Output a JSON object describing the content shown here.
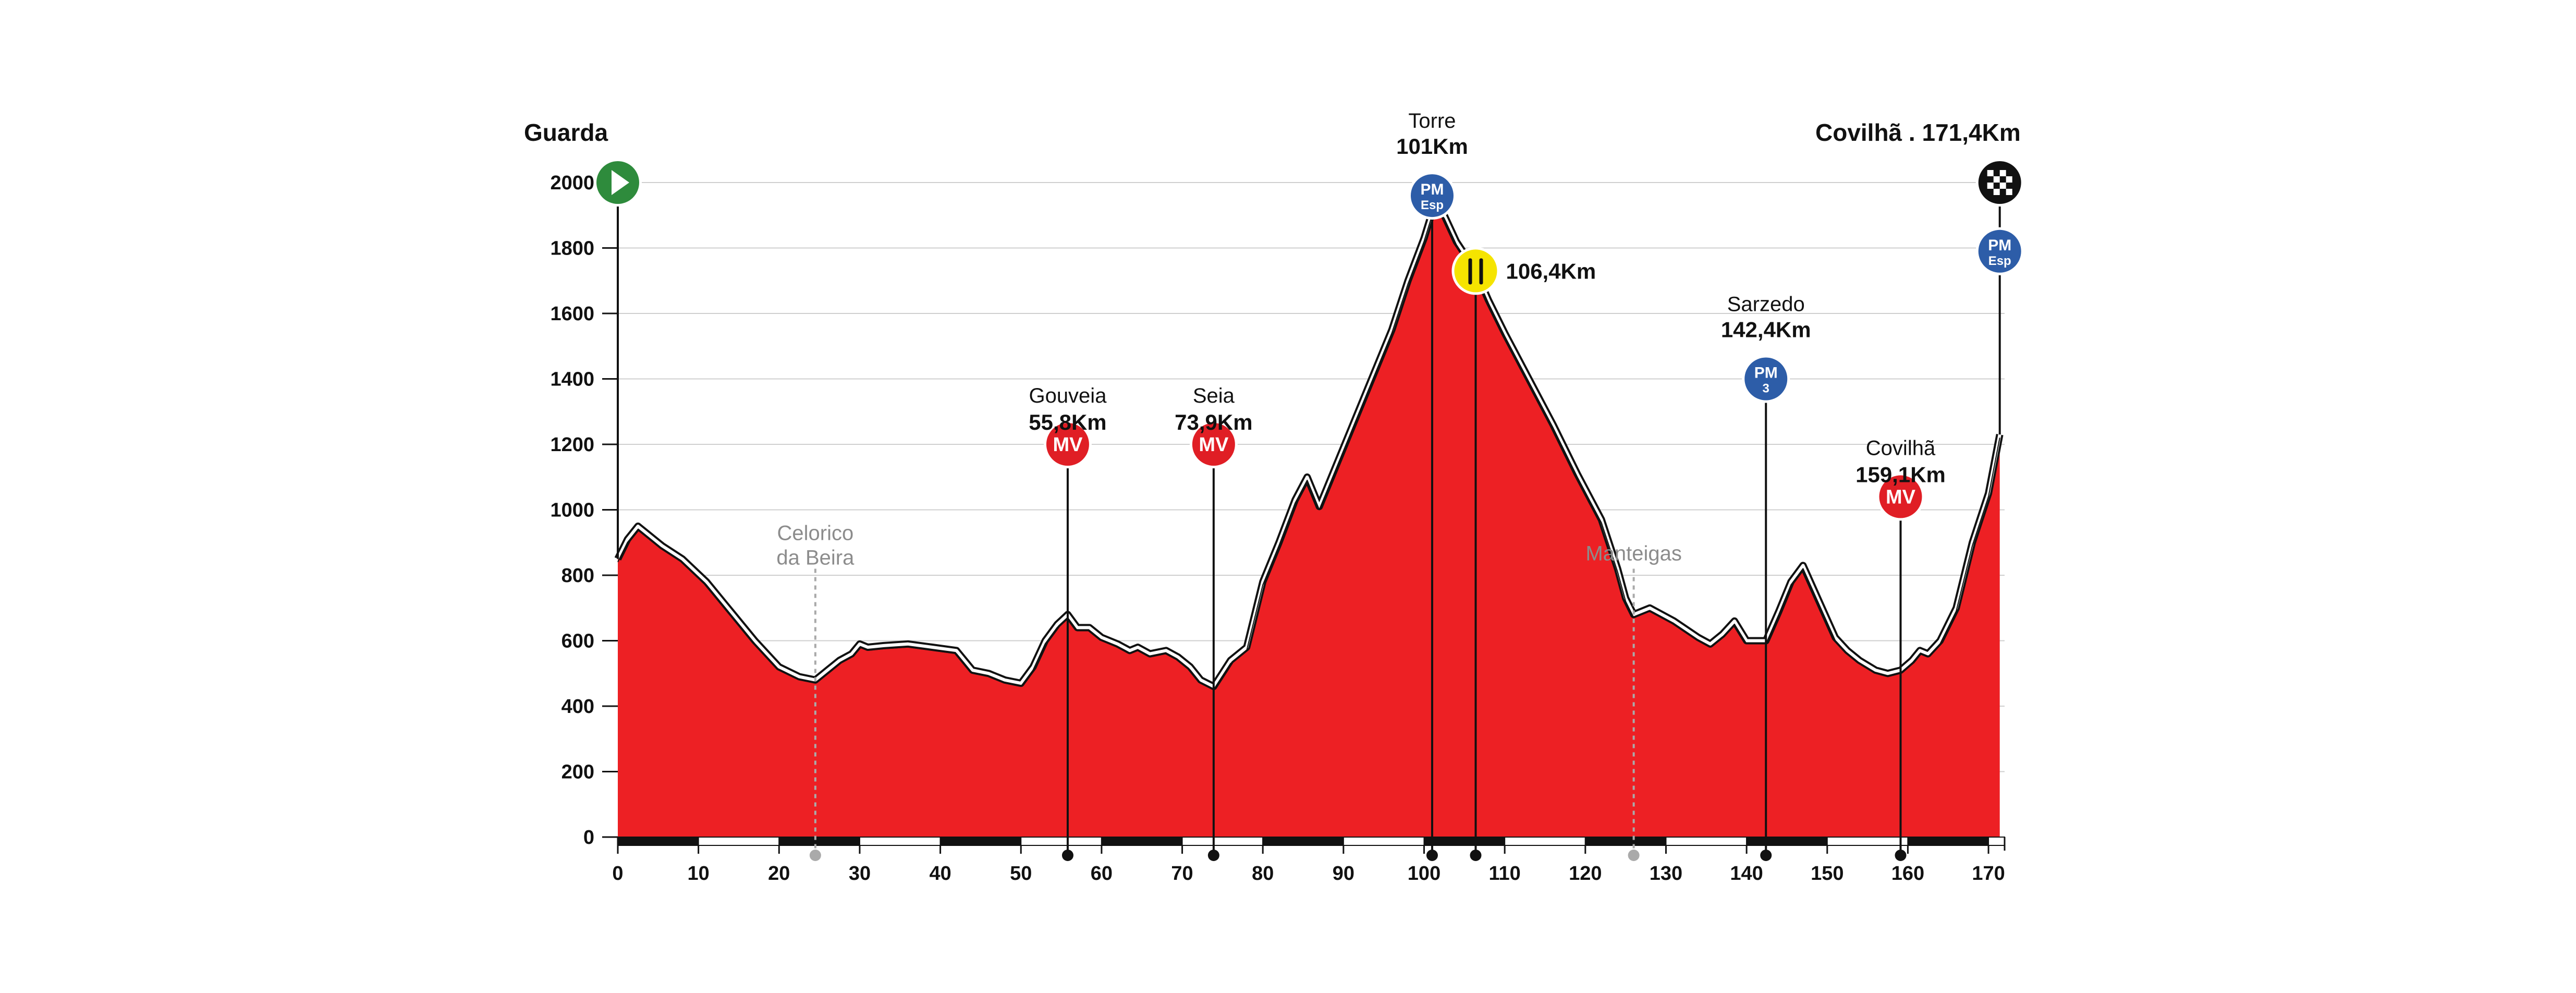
{
  "chart_data": {
    "type": "area",
    "title": "",
    "xlabel": "",
    "ylabel": "",
    "xlim": [
      0,
      172
    ],
    "ylim": [
      0,
      2000
    ],
    "x_ticks": [
      0,
      10,
      20,
      30,
      40,
      50,
      60,
      70,
      80,
      90,
      100,
      110,
      120,
      130,
      140,
      150,
      160,
      170
    ],
    "y_ticks": [
      0,
      200,
      400,
      600,
      800,
      1000,
      1200,
      1400,
      1600,
      1800,
      2000
    ],
    "grid": true,
    "colors": {
      "fill": "#ed2024",
      "outline": "#111111",
      "grid": "#cfcfcf",
      "mv": "#e01e25",
      "pm": "#2d5da8",
      "start": "#2e8b3c",
      "feed": "#f5e400"
    },
    "series": [
      {
        "x": [
          0,
          1.2,
          2.5,
          4,
          5.5,
          8,
          11,
          14,
          17,
          20,
          22.5,
          24.5,
          26,
          27.5,
          29,
          30,
          31,
          33,
          36,
          39,
          42,
          44,
          46,
          48,
          50,
          51.5,
          53,
          54.5,
          55.8,
          57,
          58.5,
          60,
          62,
          63.5,
          64.5,
          66,
          68,
          69.5,
          71,
          72.3,
          73.9,
          76,
          78,
          80,
          82,
          84,
          85.5,
          87,
          90,
          93,
          96,
          98,
          100,
          101,
          101.5,
          102.5,
          104,
          106.4,
          108,
          110,
          113,
          116,
          119,
          122,
          124,
          125,
          126,
          128,
          131,
          134,
          135.5,
          137,
          138.5,
          140,
          142.4,
          144,
          145.5,
          147,
          149,
          151,
          152.5,
          154,
          156,
          157.5,
          159.1,
          160.5,
          161.5,
          162.5,
          164,
          166,
          168,
          170,
          171.4
        ],
        "y": [
          850,
          910,
          950,
          920,
          890,
          850,
          780,
          690,
          600,
          520,
          490,
          480,
          510,
          540,
          560,
          590,
          580,
          585,
          590,
          580,
          570,
          510,
          500,
          480,
          470,
          520,
          600,
          650,
          680,
          640,
          640,
          610,
          590,
          570,
          580,
          560,
          570,
          550,
          520,
          480,
          460,
          540,
          580,
          780,
          900,
          1030,
          1100,
          1010,
          1190,
          1370,
          1550,
          1700,
          1830,
          1910,
          1930,
          1900,
          1820,
          1730,
          1640,
          1540,
          1400,
          1260,
          1110,
          970,
          820,
          730,
          680,
          700,
          660,
          610,
          590,
          620,
          660,
          600,
          600,
          690,
          780,
          830,
          720,
          610,
          570,
          540,
          510,
          500,
          510,
          540,
          570,
          560,
          600,
          700,
          900,
          1050,
          1230
        ]
      }
    ],
    "points": [
      {
        "km": 0,
        "label": "Guarda",
        "type": "start"
      },
      {
        "km": 24.5,
        "label": "Celorico da Beira",
        "type": "town"
      },
      {
        "km": 55.8,
        "label": "Gouveia",
        "km_label": "55,8Km",
        "type": "MV"
      },
      {
        "km": 73.9,
        "label": "Seia",
        "km_label": "73,9Km",
        "type": "MV"
      },
      {
        "km": 101,
        "label": "Torre",
        "km_label": "101Km",
        "type": "PM",
        "cat": "Esp"
      },
      {
        "km": 106.4,
        "km_label": "106,4Km",
        "type": "feed"
      },
      {
        "km": 126,
        "label": "Manteigas",
        "type": "town"
      },
      {
        "km": 142.4,
        "label": "Sarzedo",
        "km_label": "142,4Km",
        "type": "PM",
        "cat": "3"
      },
      {
        "km": 159.1,
        "label": "Covilhã",
        "km_label": "159,1Km",
        "type": "MV"
      },
      {
        "km": 171.4,
        "label": "Covilhã . 171,4Km",
        "type": "finish",
        "pm_cat": "Esp"
      }
    ],
    "badges": {
      "mv": "MV",
      "pm": "PM"
    }
  }
}
